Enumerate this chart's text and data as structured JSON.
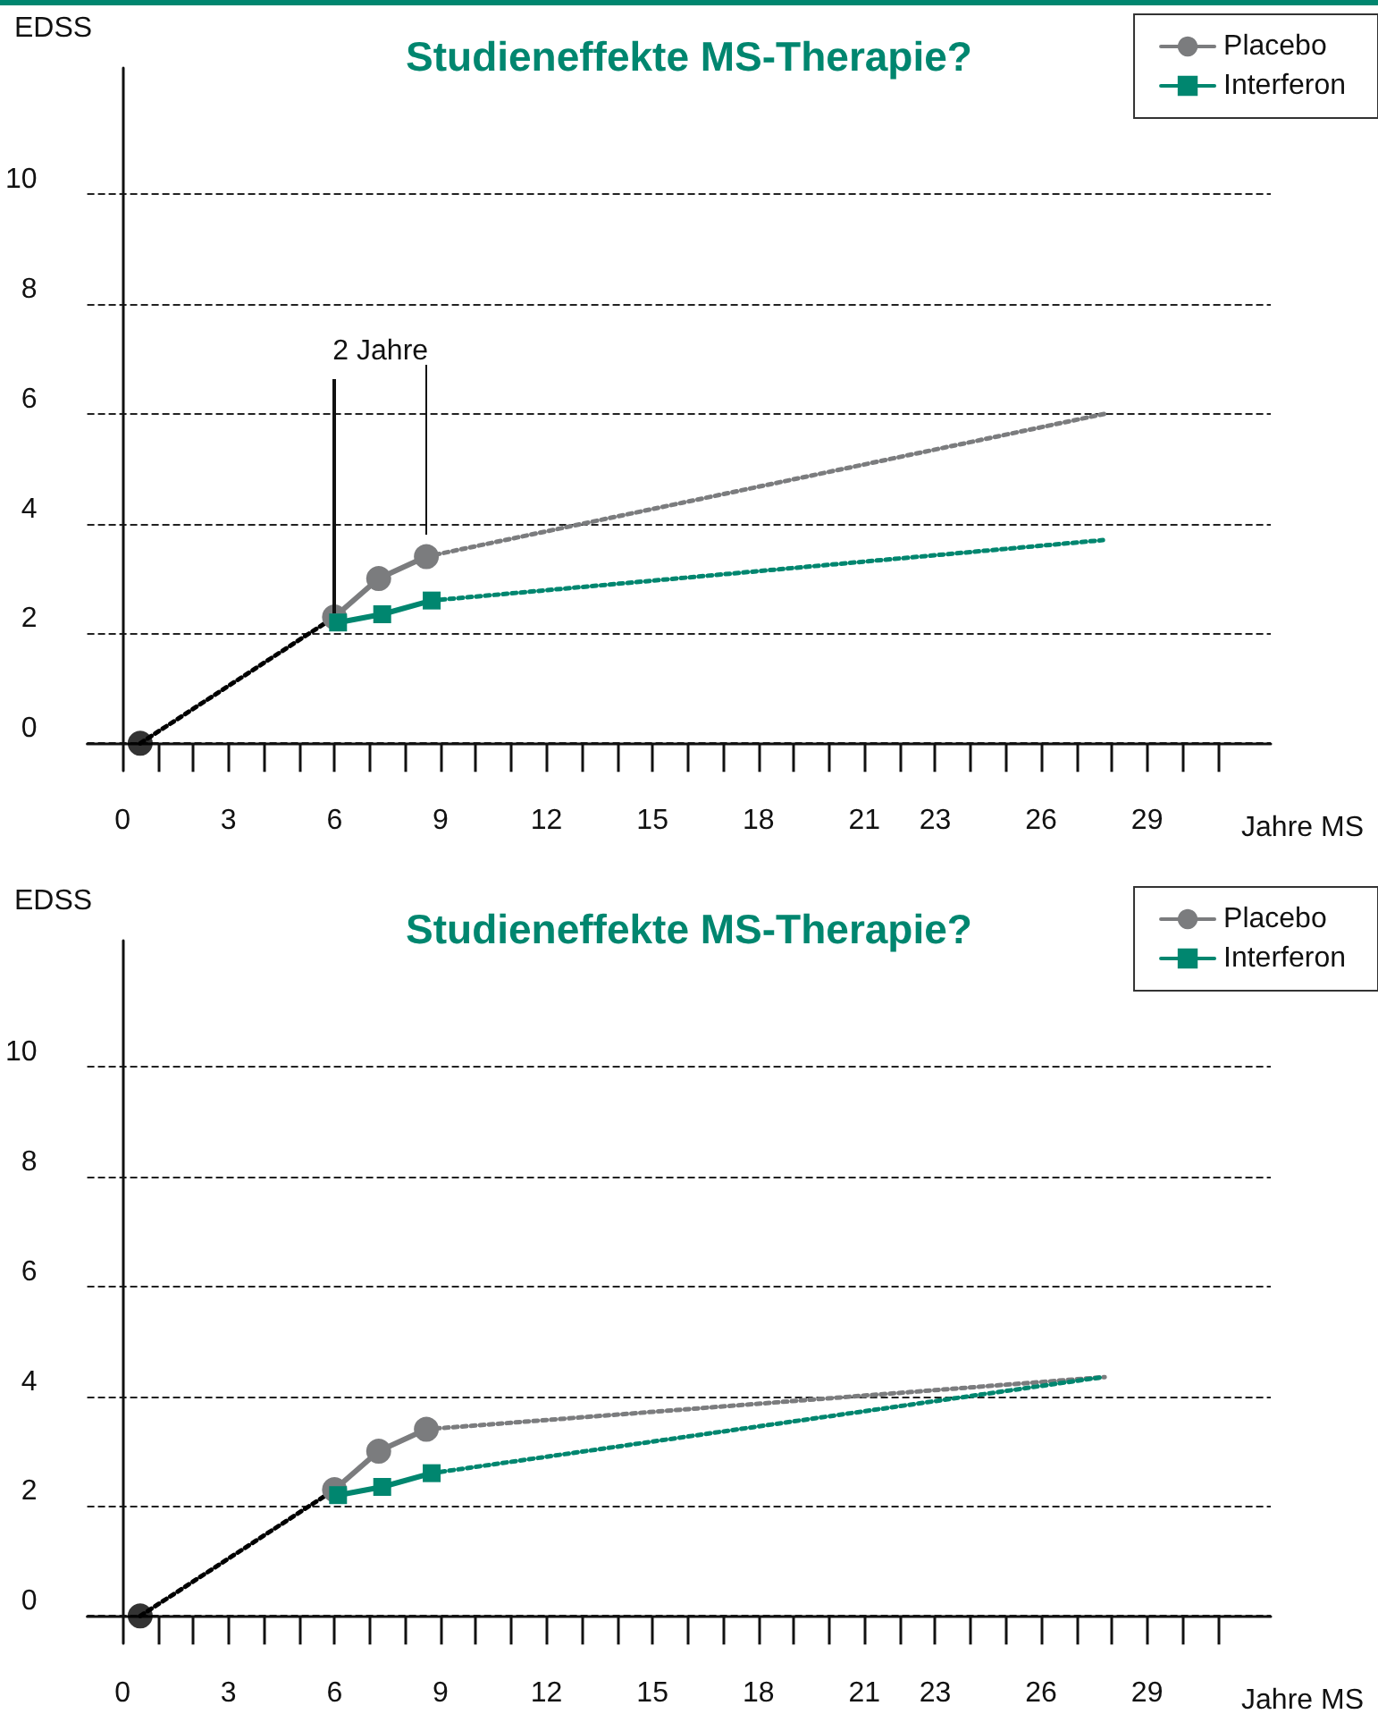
{
  "chart_data": [
    {
      "type": "line",
      "title": "Studieneffekte MS-Therapie?",
      "xlabel": "Jahre MS",
      "ylabel": "EDSS",
      "xlim": [
        -1,
        32.5
      ],
      "ylim": [
        -0.5,
        12.3
      ],
      "xticks": [
        0,
        {
          "value": 1,
          "label": null
        },
        {
          "value": 2,
          "label": null
        },
        3,
        {
          "value": 4,
          "label": null
        },
        {
          "value": 5,
          "label": null
        },
        6,
        {
          "value": 7,
          "label": null
        },
        {
          "value": 8,
          "label": null
        },
        9,
        {
          "value": 10,
          "label": null
        },
        {
          "value": 11,
          "label": null
        },
        12,
        {
          "value": 13,
          "label": null
        },
        {
          "value": 14,
          "label": null
        },
        15,
        {
          "value": 16,
          "label": null
        },
        {
          "value": 17,
          "label": null
        },
        18,
        {
          "value": 19,
          "label": null
        },
        {
          "value": 20,
          "label": null
        },
        21,
        {
          "value": 22,
          "label": null
        },
        23,
        {
          "value": 24,
          "label": null
        },
        {
          "value": 25,
          "label": null
        },
        26,
        {
          "value": 27,
          "label": null
        },
        {
          "value": 28,
          "label": null
        },
        29,
        {
          "value": 30,
          "label": null
        },
        {
          "value": 31,
          "label": null
        }
      ],
      "yticks": [
        0,
        2,
        4,
        6,
        8,
        10
      ],
      "grid": "y",
      "legend": "top right",
      "annotations": [
        "2 Jahre"
      ],
      "series": [
        {
          "type": "scatter",
          "color": "#000000",
          "x": [
            0.5
          ],
          "values": [
            0
          ],
          "marker": "circle"
        },
        {
          "color": "#000000",
          "x": [
            0.5,
            6
          ],
          "values": [
            0,
            2.3
          ],
          "line_style": "dotted"
        },
        {
          "color": "#7b7c7e",
          "x": [
            8.6,
            27.8
          ],
          "values": [
            3.4,
            6.0
          ],
          "line_style": "dotted"
        },
        {
          "color": "#00866f",
          "x": [
            8.75,
            27.75
          ],
          "values": [
            2.6,
            3.7
          ],
          "line_style": "dotted"
        },
        {
          "name": "Placebo",
          "color": "#7b7c7e",
          "x": [
            6,
            7.25,
            8.6
          ],
          "values": [
            2.3,
            3.0,
            3.4
          ],
          "marker": "circle",
          "line_style": "solid"
        },
        {
          "name": "Interferon",
          "color": "#00866f",
          "x": [
            6.1,
            7.35,
            8.75
          ],
          "values": [
            2.2,
            2.35,
            2.6
          ],
          "marker": "square",
          "line_style": "solid"
        }
      ]
    },
    {
      "type": "line",
      "title": "Studieneffekte MS-Therapie?",
      "xlabel": "Jahre MS",
      "ylabel": "EDSS",
      "xlim": [
        -1,
        32.5
      ],
      "ylim": [
        -0.5,
        12.3
      ],
      "xticks": [
        0,
        {
          "value": 1,
          "label": null
        },
        {
          "value": 2,
          "label": null
        },
        3,
        {
          "value": 4,
          "label": null
        },
        {
          "value": 5,
          "label": null
        },
        6,
        {
          "value": 7,
          "label": null
        },
        {
          "value": 8,
          "label": null
        },
        9,
        {
          "value": 10,
          "label": null
        },
        {
          "value": 11,
          "label": null
        },
        12,
        {
          "value": 13,
          "label": null
        },
        {
          "value": 14,
          "label": null
        },
        15,
        {
          "value": 16,
          "label": null
        },
        {
          "value": 17,
          "label": null
        },
        18,
        {
          "value": 19,
          "label": null
        },
        {
          "value": 20,
          "label": null
        },
        21,
        {
          "value": 22,
          "label": null
        },
        23,
        {
          "value": 24,
          "label": null
        },
        {
          "value": 25,
          "label": null
        },
        26,
        {
          "value": 27,
          "label": null
        },
        {
          "value": 28,
          "label": null
        },
        29,
        {
          "value": 30,
          "label": null
        },
        {
          "value": 31,
          "label": null
        }
      ],
      "yticks": [
        0,
        2,
        4,
        6,
        8,
        10
      ],
      "grid": "y",
      "legend": "top right",
      "series": [
        {
          "type": "scatter",
          "color": "#000000",
          "x": [
            0.5
          ],
          "values": [
            0
          ],
          "marker": "circle"
        },
        {
          "color": "#000000",
          "x": [
            0.5,
            6
          ],
          "values": [
            0,
            2.3
          ],
          "line_style": "dotted"
        },
        {
          "color": "#7b7c7e",
          "x": [
            8.6,
            27.8
          ],
          "values": [
            3.4,
            4.35
          ],
          "line_style": "dotted"
        },
        {
          "color": "#00866f",
          "x": [
            8.75,
            27.75
          ],
          "values": [
            2.6,
            4.35
          ],
          "line_style": "dotted"
        },
        {
          "name": "Placebo",
          "color": "#7b7c7e",
          "x": [
            6,
            7.25,
            8.6
          ],
          "values": [
            2.3,
            3.0,
            3.4
          ],
          "marker": "circle",
          "line_style": "solid"
        },
        {
          "name": "Interferon",
          "color": "#00866f",
          "x": [
            6.1,
            7.35,
            8.75
          ],
          "values": [
            2.2,
            2.35,
            2.6
          ],
          "marker": "square",
          "line_style": "solid"
        }
      ]
    }
  ]
}
